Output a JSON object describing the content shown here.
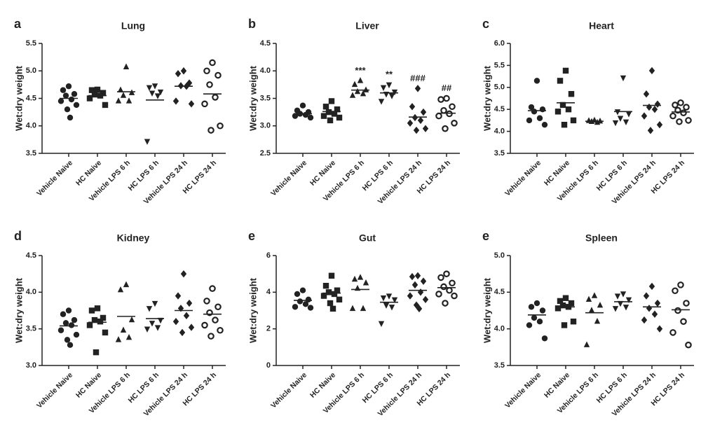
{
  "chart_data": [
    {
      "type": "scatter",
      "panel": "a",
      "title": "Lung",
      "ylabel": "Wet:dry weight",
      "color": "#222222",
      "categories": [
        "Vehicle Naive",
        "HC Naive",
        "Vehicle LPS 6 h",
        "HC LPS 6 h",
        "Vehicle LPS 24 h",
        "HC LPS 24 h"
      ],
      "markers": [
        "circle",
        "square",
        "triangle-up",
        "triangle-down",
        "diamond",
        "circle-open"
      ],
      "values": [
        [
          4.72,
          4.65,
          4.58,
          4.55,
          4.48,
          4.45,
          4.38,
          4.3,
          4.15
        ],
        [
          4.66,
          4.65,
          4.6,
          4.57,
          4.55,
          4.5,
          4.38
        ],
        [
          5.07,
          4.65,
          4.6,
          4.55,
          4.45,
          4.45
        ],
        [
          4.73,
          4.7,
          4.62,
          4.6,
          4.55,
          3.72
        ],
        [
          5.0,
          4.95,
          4.78,
          4.73,
          4.72,
          4.45,
          4.4
        ],
        [
          5.15,
          5.0,
          4.92,
          4.75,
          4.52,
          4.4,
          4.0,
          3.92
        ]
      ],
      "means": [
        4.5,
        4.55,
        4.62,
        4.47,
        4.72,
        4.58
      ],
      "ylim": [
        3.5,
        5.5
      ],
      "yticks": [
        3.5,
        {
          "value": 4,
          "label": "4.0"
        },
        4.5,
        {
          "value": 5,
          "label": "5.0"
        },
        5.5
      ]
    },
    {
      "type": "scatter",
      "panel": "b",
      "title": "Liver",
      "ylabel": "Wet:dry weight",
      "color": "#222222",
      "categories": [
        "Vehicle Naive",
        "HC Naive",
        "Vehicle LPS 6 h",
        "HC LPS 6 h",
        "Vehicle LPS 24 h",
        "HC LPS 24 h"
      ],
      "markers": [
        "circle",
        "square",
        "triangle-up",
        "triangle-down",
        "diamond",
        "circle-open"
      ],
      "values": [
        [
          3.37,
          3.28,
          3.25,
          3.22,
          3.2,
          3.18,
          3.15
        ],
        [
          3.45,
          3.35,
          3.3,
          3.25,
          3.22,
          3.18,
          3.15,
          3.1
        ],
        [
          3.82,
          3.75,
          3.65,
          3.62,
          3.58,
          3.55
        ],
        [
          3.75,
          3.7,
          3.62,
          3.58,
          3.55,
          3.45
        ],
        [
          3.68,
          3.35,
          3.25,
          3.15,
          3.1,
          3.05,
          2.95,
          2.92
        ],
        [
          3.5,
          3.48,
          3.35,
          3.28,
          3.22,
          3.18,
          3.05,
          2.95
        ]
      ],
      "means": [
        3.22,
        3.26,
        3.65,
        3.6,
        3.16,
        3.23
      ],
      "annotations": [
        null,
        null,
        "***",
        "**",
        "###",
        "##"
      ],
      "ylim": [
        2.5,
        4.5
      ],
      "yticks": [
        2.5,
        {
          "value": 3,
          "label": "3.0"
        },
        3.5,
        {
          "value": 4,
          "label": "4.0"
        },
        4.5
      ]
    },
    {
      "type": "scatter",
      "panel": "c",
      "title": "Heart",
      "ylabel": "Wet:dry weight",
      "color": "#222222",
      "categories": [
        "Vehicle Naive",
        "HC Naive",
        "Vehicle LPS 6 h",
        "HC LPS 6 h",
        "Vehicle LPS 24 h",
        "HC LPS 24 h"
      ],
      "markers": [
        "circle",
        "square",
        "triangle-up",
        "triangle-down",
        "diamond",
        "circle-open"
      ],
      "values": [
        [
          5.15,
          4.55,
          4.5,
          4.45,
          4.3,
          4.25,
          4.15
        ],
        [
          5.38,
          5.15,
          4.85,
          4.6,
          4.5,
          4.45,
          4.25,
          4.15
        ],
        [
          4.25,
          4.24,
          4.23,
          4.22,
          4.2
        ],
        [
          5.22,
          4.45,
          4.4,
          4.3,
          4.22,
          4.2
        ],
        [
          5.38,
          4.85,
          4.62,
          4.55,
          4.5,
          4.35,
          4.15,
          4.02
        ],
        [
          4.65,
          4.6,
          4.55,
          4.48,
          4.42,
          4.35,
          4.25,
          4.22
        ]
      ],
      "means": [
        4.47,
        4.65,
        4.23,
        4.45,
        4.59,
        4.44
      ],
      "ylim": [
        3.5,
        6
      ],
      "yticks": [
        3.5,
        {
          "value": 4,
          "label": "4.0"
        },
        4.5,
        {
          "value": 5,
          "label": "5.0"
        },
        5.5,
        {
          "value": 6,
          "label": "6.0"
        }
      ]
    },
    {
      "type": "scatter",
      "panel": "d",
      "title": "Kidney",
      "ylabel": "Wet:dry weight",
      "color": "#222222",
      "categories": [
        "Vehicle Naive",
        "HC Naive",
        "Vehicle LPS 6 h",
        "HC LPS 6 h",
        "Vehicle LPS 24 h",
        "HC LPS 24 h"
      ],
      "markers": [
        "circle",
        "square",
        "triangle-up",
        "triangle-down",
        "diamond",
        "circle-open"
      ],
      "values": [
        [
          3.75,
          3.7,
          3.62,
          3.58,
          3.55,
          3.48,
          3.42,
          3.35,
          3.28
        ],
        [
          3.78,
          3.75,
          3.65,
          3.62,
          3.6,
          3.55,
          3.45,
          3.18
        ],
        [
          4.1,
          4.03,
          3.62,
          3.48,
          3.38,
          3.35
        ],
        [
          3.85,
          3.78,
          3.62,
          3.58,
          3.52,
          3.5
        ],
        [
          4.25,
          3.95,
          3.85,
          3.78,
          3.68,
          3.6,
          3.52,
          3.45
        ],
        [
          4.05,
          3.88,
          3.8,
          3.72,
          3.62,
          3.55,
          3.48,
          3.4
        ]
      ],
      "means": [
        3.54,
        3.59,
        3.67,
        3.64,
        3.75,
        3.7
      ],
      "ylim": [
        3,
        4.5
      ],
      "yticks": [
        {
          "value": 3,
          "label": "3.0"
        },
        3.5,
        {
          "value": 4,
          "label": "4.0"
        },
        4.5
      ]
    },
    {
      "type": "scatter",
      "panel": "e",
      "title": "Gut",
      "ylabel": "Wet:dry weight",
      "color": "#222222",
      "categories": [
        "Vehicle Naive",
        "HC Naive",
        "Vehicle LPS 6 h",
        "HC LPS 6 h",
        "Vehicle LPS 24 h",
        "HC LPS 24 h"
      ],
      "markers": [
        "circle",
        "square",
        "triangle-up",
        "triangle-down",
        "diamond",
        "circle-open"
      ],
      "values": [
        [
          4.1,
          3.9,
          3.6,
          3.5,
          3.35,
          3.2,
          3.15
        ],
        [
          4.9,
          4.35,
          4.1,
          4.0,
          3.9,
          3.8,
          3.6,
          3.4,
          3.1
        ],
        [
          4.8,
          4.7,
          4.5,
          4.2,
          3.1,
          3.1
        ],
        [
          3.8,
          3.7,
          3.6,
          3.3,
          3.2,
          2.3
        ],
        [
          4.9,
          4.85,
          4.6,
          4.4,
          4.0,
          3.8,
          3.6,
          3.3,
          3.1
        ],
        [
          5.0,
          4.8,
          4.5,
          4.3,
          4.1,
          3.9,
          3.8,
          3.4
        ]
      ],
      "means": [
        3.55,
        3.95,
        4.15,
        3.45,
        4.1,
        4.25
      ],
      "ylim": [
        0,
        6
      ],
      "yticks": [
        0,
        2,
        4,
        6
      ]
    },
    {
      "type": "scatter",
      "panel": "e",
      "title": "Spleen",
      "ylabel": "Wet:dry weight",
      "color": "#222222",
      "categories": [
        "Vehicle Naive",
        "HC Naive",
        "Vehicle LPS 6 h",
        "HC LPS 6 h",
        "Vehicle LPS 24 h",
        "HC LPS 24 h"
      ],
      "markers": [
        "circle",
        "square",
        "triangle-up",
        "triangle-down",
        "diamond",
        "circle-open"
      ],
      "values": [
        [
          4.35,
          4.3,
          4.25,
          4.15,
          4.1,
          4.05,
          3.87
        ],
        [
          4.42,
          4.38,
          4.35,
          4.32,
          4.3,
          4.28,
          4.1,
          4.05
        ],
        [
          4.45,
          4.4,
          4.32,
          4.25,
          4.1,
          3.78
        ],
        [
          4.48,
          4.45,
          4.4,
          4.35,
          4.3,
          4.28
        ],
        [
          4.58,
          4.45,
          4.35,
          4.28,
          4.2,
          4.12,
          4.0
        ],
        [
          4.6,
          4.52,
          4.35,
          4.25,
          4.1,
          3.95,
          3.78
        ]
      ],
      "means": [
        4.19,
        4.3,
        4.22,
        4.37,
        4.3,
        4.26
      ],
      "ylim": [
        3.5,
        5
      ],
      "yticks": [
        3.5,
        {
          "value": 4,
          "label": "4.0"
        },
        4.5,
        {
          "value": 5,
          "label": "5.0"
        }
      ]
    }
  ]
}
